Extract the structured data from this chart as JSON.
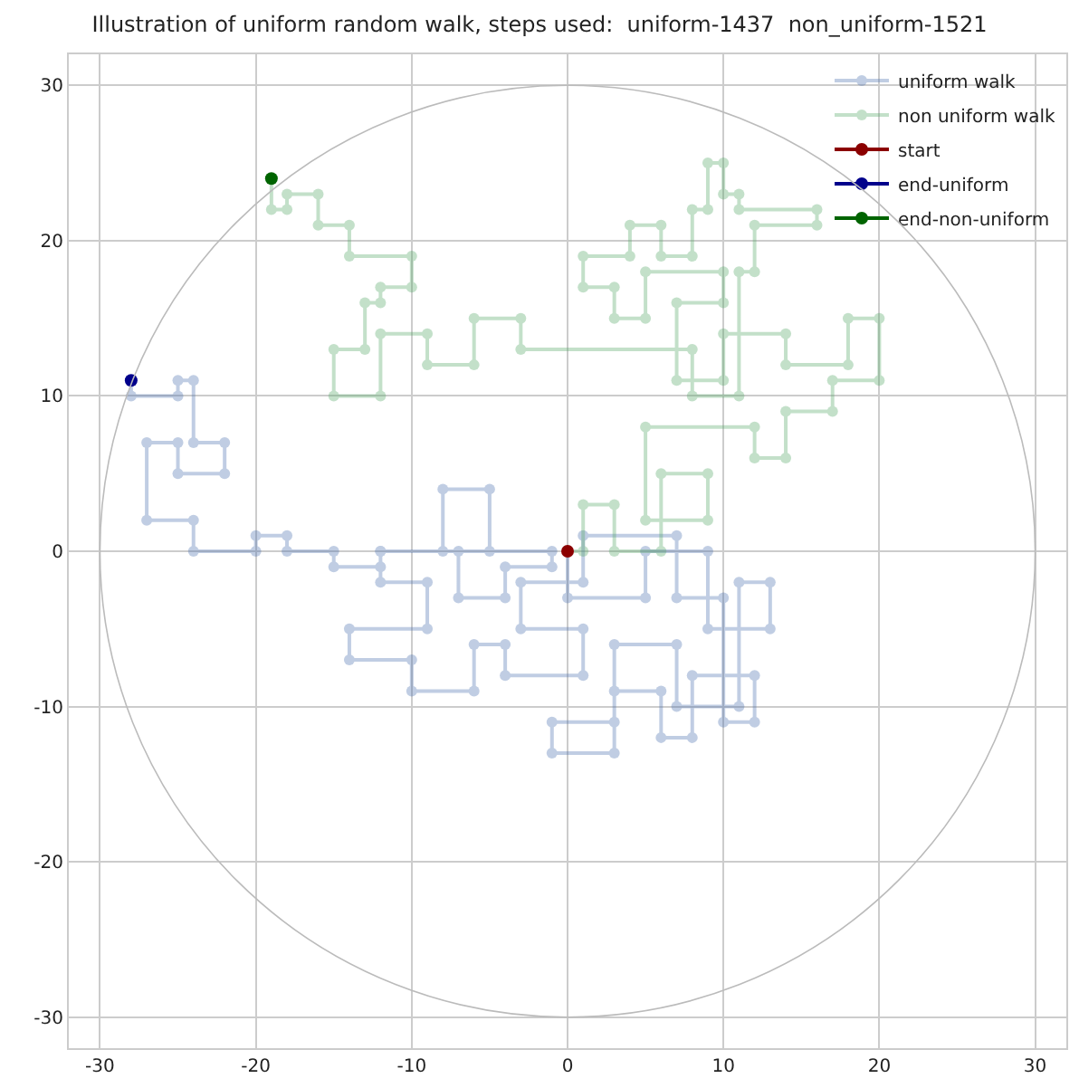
{
  "chart_data": {
    "type": "line",
    "title": "Illustration of uniform random walk, steps used:  uniform-1437  non_uniform-1521",
    "xlim": [
      -32,
      32
    ],
    "ylim": [
      -32,
      32
    ],
    "xticks": [
      -30,
      -20,
      -10,
      0,
      10,
      20,
      30
    ],
    "yticks": [
      -30,
      -20,
      -10,
      0,
      10,
      20,
      30
    ],
    "grid": true,
    "legend": "top right",
    "marker": "circle",
    "line_style": "solid",
    "series": [
      {
        "name": "uniform walk",
        "color": "#4c72b0",
        "x": [
          0,
          0,
          5,
          5,
          9,
          9,
          13,
          13,
          11,
          11,
          7,
          7,
          3,
          3,
          -1,
          -1,
          3,
          3,
          6,
          6,
          8,
          8,
          12,
          12,
          10,
          10,
          7,
          7,
          1,
          1,
          -3,
          -3,
          1,
          1,
          -4,
          -4,
          -6,
          -6,
          -10,
          -10,
          -14,
          -14,
          -9,
          -9,
          -12,
          -12,
          -8,
          -8,
          -5,
          -5,
          -7,
          -7,
          -4,
          -4,
          -1,
          -1,
          -12,
          -12,
          -15,
          -15,
          -18,
          -18,
          -20,
          -20,
          -24,
          -24,
          -27,
          -27,
          -25,
          -25,
          -22,
          -22,
          -24,
          -24,
          -25,
          -25,
          -28,
          -28
        ],
        "values": [
          0,
          -3,
          -3,
          0,
          0,
          -5,
          -5,
          -2,
          -2,
          -10,
          -10,
          -6,
          -6,
          -11,
          -11,
          -13,
          -13,
          -9,
          -9,
          -12,
          -12,
          -8,
          -8,
          -11,
          -11,
          -3,
          -3,
          1,
          1,
          -2,
          -2,
          -5,
          -5,
          -8,
          -8,
          -6,
          -6,
          -9,
          -9,
          -7,
          -7,
          -5,
          -5,
          -2,
          -2,
          0,
          0,
          4,
          4,
          0,
          0,
          -3,
          -3,
          -1,
          -1,
          0,
          0,
          -1,
          -1,
          0,
          0,
          1,
          1,
          0,
          0,
          2,
          2,
          7,
          7,
          5,
          5,
          7,
          7,
          11,
          11,
          10,
          10,
          11
        ]
      },
      {
        "name": "non uniform walk",
        "color": "#55a868",
        "x": [
          0,
          1,
          1,
          3,
          3,
          6,
          6,
          9,
          9,
          5,
          5,
          12,
          12,
          14,
          14,
          17,
          17,
          20,
          20,
          18,
          18,
          14,
          14,
          10,
          10,
          7,
          7,
          10,
          10,
          5,
          5,
          3,
          3,
          1,
          1,
          4,
          4,
          6,
          6,
          8,
          8,
          9,
          9,
          10,
          10,
          11,
          11,
          16,
          16,
          12,
          12,
          11,
          11,
          8,
          8,
          -3,
          -3,
          -6,
          -6,
          -9,
          -9,
          -12,
          -12,
          -15,
          -15,
          -13,
          -13,
          -12,
          -12,
          -10,
          -10,
          -14,
          -14,
          -16,
          -16,
          -18,
          -18,
          -19,
          -19
        ],
        "values": [
          0,
          0,
          3,
          3,
          0,
          0,
          5,
          5,
          2,
          2,
          8,
          8,
          6,
          6,
          9,
          9,
          11,
          11,
          15,
          15,
          12,
          12,
          14,
          14,
          11,
          11,
          16,
          16,
          18,
          18,
          15,
          15,
          17,
          17,
          19,
          19,
          21,
          21,
          19,
          19,
          22,
          22,
          25,
          25,
          23,
          23,
          22,
          22,
          21,
          21,
          18,
          18,
          10,
          10,
          13,
          13,
          15,
          15,
          12,
          12,
          14,
          14,
          10,
          10,
          13,
          13,
          16,
          16,
          17,
          17,
          19,
          19,
          21,
          21,
          23,
          23,
          22,
          22,
          24
        ]
      },
      {
        "name": "start",
        "color": "#8b0000",
        "x": [
          0
        ],
        "values": [
          0
        ]
      },
      {
        "name": "end-uniform",
        "color": "#00008b",
        "x": [
          -28
        ],
        "values": [
          11
        ]
      },
      {
        "name": "end-non-uniform",
        "color": "#006400",
        "x": [
          -19
        ],
        "values": [
          24
        ]
      }
    ]
  }
}
